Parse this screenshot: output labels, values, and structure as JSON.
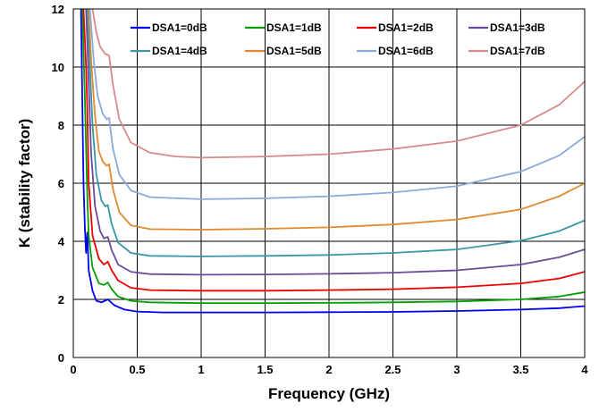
{
  "chart_data": {
    "type": "line",
    "title": "",
    "xlabel": "Frequency (GHz)",
    "ylabel": "K (stability factor)",
    "xlim": [
      0,
      4
    ],
    "ylim": [
      0,
      12
    ],
    "xticks": [
      "0",
      "0.5",
      "1",
      "1.5",
      "2",
      "2.5",
      "3",
      "3.5",
      "4"
    ],
    "yticks": [
      "0",
      "2",
      "4",
      "6",
      "8",
      "10",
      "12"
    ],
    "grid": true,
    "legend": "top, inside, 4 columns",
    "series": [
      {
        "name": "DSA1=0dB",
        "color": "#0000ee",
        "points": [
          [
            0.06,
            12
          ],
          [
            0.07,
            9
          ],
          [
            0.08,
            6
          ],
          [
            0.09,
            4.5
          ],
          [
            0.1,
            3.6
          ],
          [
            0.11,
            4.3
          ],
          [
            0.12,
            3.0
          ],
          [
            0.15,
            2.3
          ],
          [
            0.18,
            1.95
          ],
          [
            0.22,
            1.9
          ],
          [
            0.27,
            2.0
          ],
          [
            0.32,
            1.8
          ],
          [
            0.4,
            1.65
          ],
          [
            0.5,
            1.58
          ],
          [
            0.7,
            1.55
          ],
          [
            1,
            1.55
          ],
          [
            1.5,
            1.55
          ],
          [
            2,
            1.56
          ],
          [
            2.5,
            1.57
          ],
          [
            3,
            1.6
          ],
          [
            3.5,
            1.65
          ],
          [
            3.8,
            1.7
          ],
          [
            4,
            1.77
          ]
        ]
      },
      {
        "name": "DSA1=1dB",
        "color": "#00a000",
        "points": [
          [
            0.07,
            12
          ],
          [
            0.09,
            9
          ],
          [
            0.1,
            7.2
          ],
          [
            0.11,
            5.5
          ],
          [
            0.12,
            4.2
          ],
          [
            0.15,
            3.1
          ],
          [
            0.2,
            2.55
          ],
          [
            0.24,
            2.5
          ],
          [
            0.27,
            2.58
          ],
          [
            0.3,
            2.35
          ],
          [
            0.35,
            2.1
          ],
          [
            0.45,
            1.95
          ],
          [
            0.6,
            1.9
          ],
          [
            1,
            1.87
          ],
          [
            1.5,
            1.87
          ],
          [
            2,
            1.88
          ],
          [
            2.5,
            1.9
          ],
          [
            3,
            1.93
          ],
          [
            3.5,
            2.0
          ],
          [
            3.8,
            2.1
          ],
          [
            4,
            2.25
          ]
        ]
      },
      {
        "name": "DSA1=2dB",
        "color": "#ee0000",
        "points": [
          [
            0.08,
            12
          ],
          [
            0.1,
            10
          ],
          [
            0.11,
            8.5
          ],
          [
            0.12,
            6.0
          ],
          [
            0.15,
            4.2
          ],
          [
            0.2,
            3.4
          ],
          [
            0.24,
            3.2
          ],
          [
            0.27,
            3.3
          ],
          [
            0.3,
            3.0
          ],
          [
            0.35,
            2.65
          ],
          [
            0.45,
            2.4
          ],
          [
            0.6,
            2.32
          ],
          [
            1,
            2.3
          ],
          [
            1.5,
            2.3
          ],
          [
            2,
            2.32
          ],
          [
            2.5,
            2.35
          ],
          [
            3,
            2.42
          ],
          [
            3.5,
            2.55
          ],
          [
            3.8,
            2.72
          ],
          [
            4,
            2.95
          ]
        ]
      },
      {
        "name": "DSA1=3dB",
        "color": "#6a4a9a",
        "points": [
          [
            0.1,
            12
          ],
          [
            0.12,
            9.5
          ],
          [
            0.14,
            7.0
          ],
          [
            0.17,
            5.2
          ],
          [
            0.21,
            4.35
          ],
          [
            0.24,
            4.1
          ],
          [
            0.27,
            4.15
          ],
          [
            0.3,
            3.7
          ],
          [
            0.35,
            3.2
          ],
          [
            0.45,
            2.95
          ],
          [
            0.6,
            2.87
          ],
          [
            1,
            2.85
          ],
          [
            1.5,
            2.86
          ],
          [
            2,
            2.88
          ],
          [
            2.5,
            2.92
          ],
          [
            3,
            3.0
          ],
          [
            3.5,
            3.2
          ],
          [
            3.8,
            3.45
          ],
          [
            4,
            3.72
          ]
        ]
      },
      {
        "name": "DSA1=4dB",
        "color": "#3a96a8",
        "points": [
          [
            0.11,
            12
          ],
          [
            0.13,
            10
          ],
          [
            0.15,
            8.0
          ],
          [
            0.18,
            6.3
          ],
          [
            0.22,
            5.4
          ],
          [
            0.25,
            5.2
          ],
          [
            0.27,
            5.25
          ],
          [
            0.3,
            4.6
          ],
          [
            0.35,
            3.95
          ],
          [
            0.45,
            3.6
          ],
          [
            0.6,
            3.5
          ],
          [
            1,
            3.48
          ],
          [
            1.5,
            3.5
          ],
          [
            2,
            3.53
          ],
          [
            2.5,
            3.6
          ],
          [
            3,
            3.72
          ],
          [
            3.5,
            4.02
          ],
          [
            3.8,
            4.35
          ],
          [
            4,
            4.72
          ]
        ]
      },
      {
        "name": "DSA1=5dB",
        "color": "#e08a30",
        "points": [
          [
            0.12,
            12
          ],
          [
            0.14,
            10.2
          ],
          [
            0.17,
            8.3
          ],
          [
            0.2,
            7.1
          ],
          [
            0.23,
            6.75
          ],
          [
            0.26,
            6.6
          ],
          [
            0.28,
            6.65
          ],
          [
            0.31,
            5.8
          ],
          [
            0.36,
            5.0
          ],
          [
            0.45,
            4.55
          ],
          [
            0.6,
            4.42
          ],
          [
            1,
            4.4
          ],
          [
            1.5,
            4.43
          ],
          [
            2,
            4.48
          ],
          [
            2.5,
            4.58
          ],
          [
            3,
            4.75
          ],
          [
            3.5,
            5.1
          ],
          [
            3.8,
            5.55
          ],
          [
            4,
            6.0
          ]
        ]
      },
      {
        "name": "DSA1=6dB",
        "color": "#8aaad8",
        "points": [
          [
            0.13,
            12
          ],
          [
            0.16,
            10.2
          ],
          [
            0.19,
            9.0
          ],
          [
            0.23,
            8.4
          ],
          [
            0.26,
            8.2
          ],
          [
            0.28,
            8.25
          ],
          [
            0.31,
            7.2
          ],
          [
            0.36,
            6.3
          ],
          [
            0.45,
            5.75
          ],
          [
            0.6,
            5.52
          ],
          [
            1,
            5.45
          ],
          [
            1.5,
            5.48
          ],
          [
            2,
            5.55
          ],
          [
            2.5,
            5.68
          ],
          [
            3,
            5.9
          ],
          [
            3.5,
            6.4
          ],
          [
            3.8,
            6.95
          ],
          [
            4,
            7.6
          ]
        ]
      },
      {
        "name": "DSA1=7dB",
        "color": "#d88a8a",
        "points": [
          [
            0.15,
            12
          ],
          [
            0.18,
            11.2
          ],
          [
            0.21,
            10.7
          ],
          [
            0.25,
            10.45
          ],
          [
            0.28,
            10.4
          ],
          [
            0.31,
            9.4
          ],
          [
            0.36,
            8.2
          ],
          [
            0.45,
            7.4
          ],
          [
            0.6,
            7.05
          ],
          [
            0.8,
            6.92
          ],
          [
            1,
            6.88
          ],
          [
            1.5,
            6.92
          ],
          [
            2,
            7.0
          ],
          [
            2.5,
            7.18
          ],
          [
            3,
            7.45
          ],
          [
            3.5,
            8.0
          ],
          [
            3.8,
            8.7
          ],
          [
            4,
            9.5
          ]
        ]
      }
    ]
  }
}
